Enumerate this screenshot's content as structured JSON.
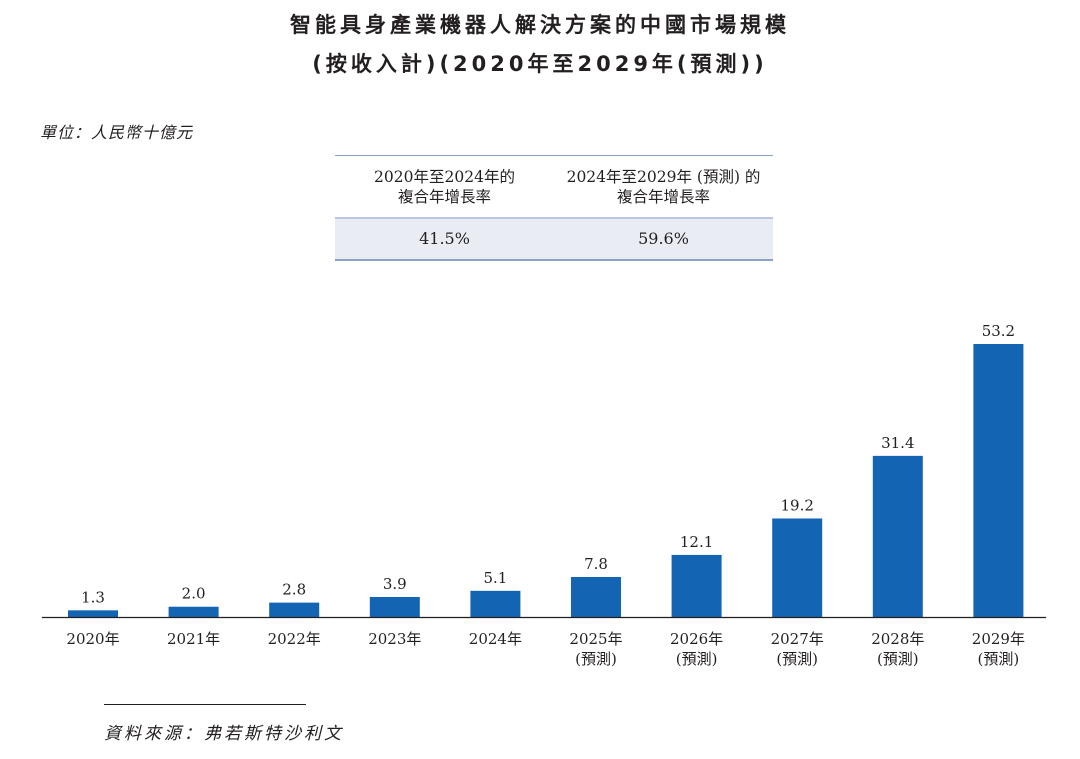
{
  "title": {
    "line1": "智能具身產業機器人解決方案的中國市場規模",
    "line2": "(按收入計)(2020年至2029年(預測))"
  },
  "unit_label": "單位：人民幣十億元",
  "cagr_table": {
    "headers": [
      [
        "2020年至2024年的",
        "複合年增長率"
      ],
      [
        "2024年至2029年 (預測) 的",
        "複合年增長率"
      ]
    ],
    "values": [
      "41.5%",
      "59.6%"
    ]
  },
  "chart_data": {
    "type": "bar",
    "categories": [
      "2020年",
      "2021年",
      "2022年",
      "2023年",
      "2024年",
      "2025年",
      "2026年",
      "2027年",
      "2028年",
      "2029年"
    ],
    "category_sublabels": [
      "",
      "",
      "",
      "",
      "",
      "(預測)",
      "(預測)",
      "(預測)",
      "(預測)",
      "(預測)"
    ],
    "values": [
      1.3,
      2.0,
      2.8,
      3.9,
      5.1,
      7.8,
      12.1,
      19.2,
      31.4,
      53.2
    ],
    "value_labels": [
      "1.3",
      "2.0",
      "2.8",
      "3.9",
      "5.1",
      "7.8",
      "12.1",
      "19.2",
      "31.4",
      "53.2"
    ],
    "ylim": [
      0,
      53.2
    ],
    "bar_color": "#1464b4",
    "axis_color": "#231f20",
    "grid": false,
    "legend": "none"
  },
  "source": "資料來源：弗若斯特沙利文"
}
